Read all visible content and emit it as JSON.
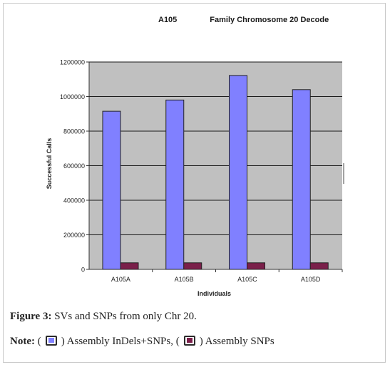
{
  "chart_data": {
    "type": "bar",
    "title_left": "A105",
    "title_right": "Family Chromosome 20 Decode",
    "ylabel": "Successful Calls",
    "xlabel": "Individuals",
    "categories": [
      "A105A",
      "A105B",
      "A105C",
      "A105D"
    ],
    "ylim": [
      0,
      1200000
    ],
    "yticks": [
      0,
      200000,
      400000,
      600000,
      800000,
      1000000,
      1200000
    ],
    "grid": true,
    "series": [
      {
        "name": "Assembly InDels+SNPs",
        "color": "#8080ff",
        "values": [
          915000,
          980000,
          1122000,
          1040000
        ]
      },
      {
        "name": "Assembly SNPs",
        "color": "#7a1f4a",
        "values": [
          38000,
          38000,
          38000,
          38000
        ]
      }
    ],
    "plot_background": "#c0c0c0"
  },
  "caption": {
    "figure_label": "Figure 3:",
    "figure_text": " SVs and SNPs from only Chr 20.",
    "note_label": "Note:",
    "note_open1": " (",
    "note_series1": ") Assembly InDels+SNPs, (",
    "note_series2": ") Assembly SNPs"
  }
}
